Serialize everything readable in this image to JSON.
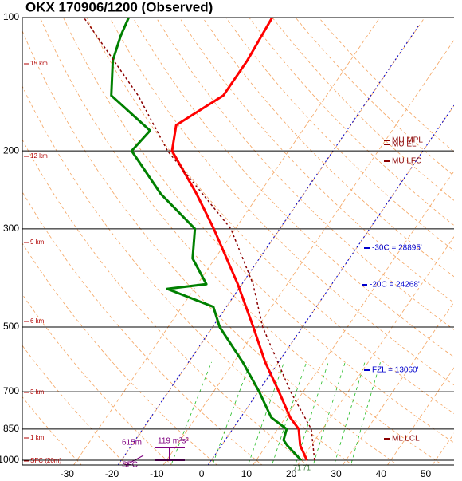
{
  "chart_data": {
    "type": "skewt",
    "title": "OKX  170906/1200  (Observed)",
    "log_y": true,
    "ylim": [
      1025,
      100
    ],
    "yticks": [
      100,
      200,
      300,
      500,
      700,
      850,
      1000
    ],
    "xlim": [
      -40,
      56.3
    ],
    "xticks": [
      -30,
      -20,
      -10,
      0,
      10,
      20,
      30,
      40,
      50
    ],
    "series": [
      {
        "color": "#ff0000",
        "pressure": [
          1000,
          925,
          850,
          800,
          700,
          600,
          500,
          400,
          300,
          250,
          200,
          175,
          150,
          125,
          100
        ],
        "values": [
          21.3,
          17.5,
          14.7,
          11,
          4.6,
          -3,
          -11,
          -21,
          -34.8,
          -44,
          -56,
          -59,
          -53,
          -53,
          -54
        ]
      },
      {
        "color": "#008000",
        "pressure": [
          1000,
          925,
          900,
          850,
          800,
          700,
          600,
          500,
          450,
          410,
          400,
          350,
          300,
          250,
          200,
          180,
          150,
          125,
          110,
          100
        ],
        "values": [
          20,
          14.6,
          13,
          12,
          6.8,
          0.2,
          -8,
          -18.5,
          -23,
          -36,
          -28,
          -35,
          -39,
          -52,
          -65,
          -64,
          -78,
          -83,
          -85,
          -86
        ]
      },
      {
        "color": "#8b0000",
        "dashed": true,
        "pressure": [
          1000,
          850,
          700,
          500,
          400,
          300,
          200,
          150,
          100
        ],
        "values": [
          23,
          17.5,
          7.2,
          -8.9,
          -17.6,
          -31,
          -57,
          -72,
          -96
        ]
      }
    ],
    "height_labels": [
      "15 km",
      "12 km",
      "9 km",
      "6 km",
      "3 km",
      "1 km",
      "SFC (20m)"
    ],
    "level_labels": [
      "MU MPL",
      "MU EL",
      "MU LFC",
      "-30C = 28895'",
      "-20C = 24268'",
      "FZL = 13060'",
      "ML LCL"
    ],
    "helicity_depth": "615m",
    "helicity": "119 m²s²",
    "helicity_base": "SFC",
    "surface_temps": [
      "71",
      "71"
    ]
  }
}
